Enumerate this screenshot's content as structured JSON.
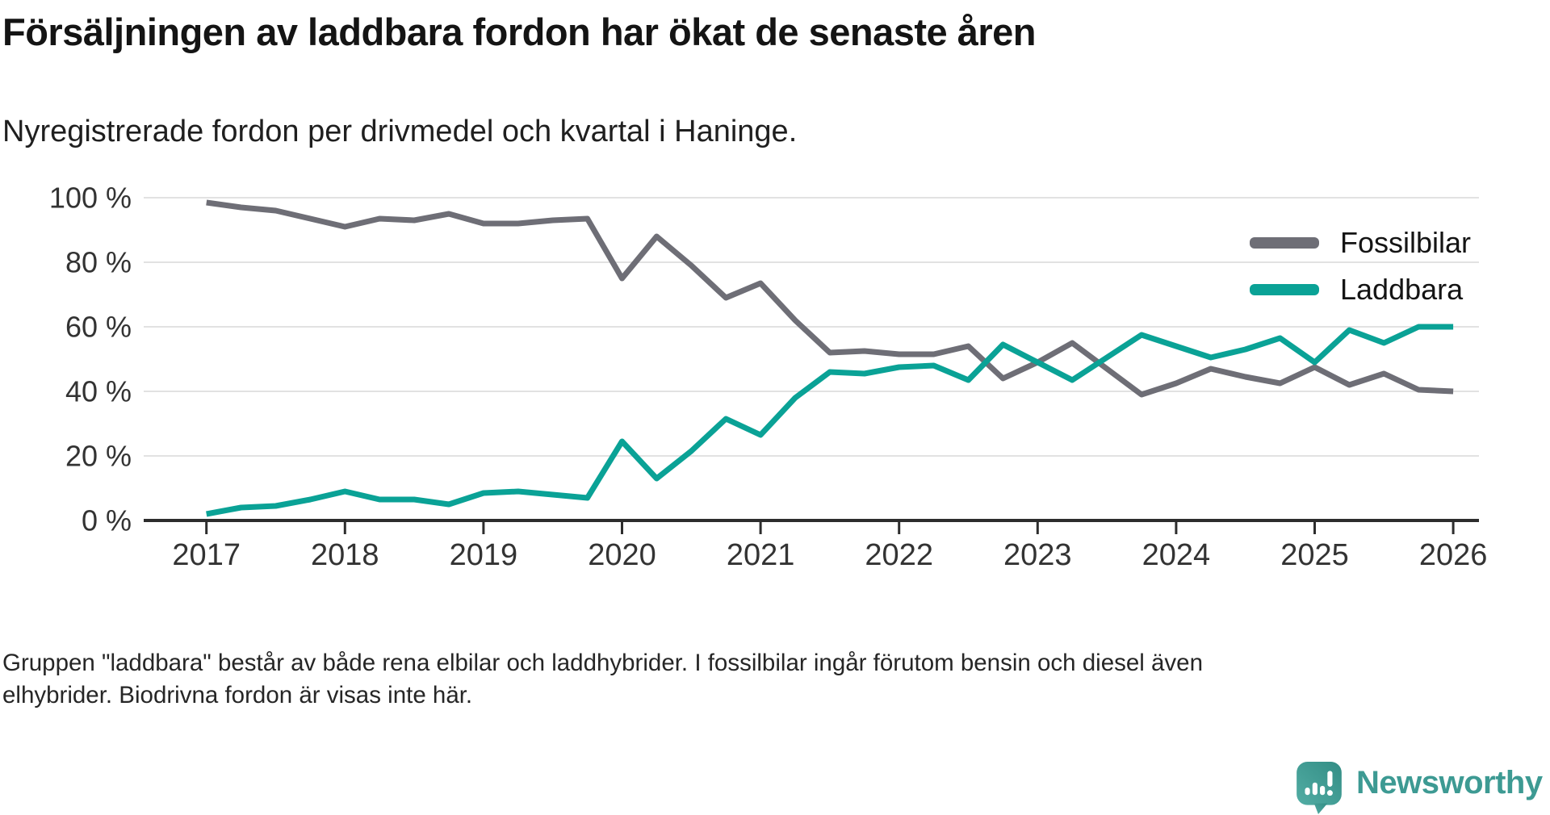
{
  "header": {
    "title": "Försäljningen av laddbara fordon har ökat de senaste åren",
    "subtitle": "Nyregistrerade fordon per drivmedel och kvartal i Haninge."
  },
  "legend": {
    "items": [
      {
        "label": "Fossilbilar",
        "color": "#6e6e76"
      },
      {
        "label": "Laddbara",
        "color": "#0aa296"
      }
    ]
  },
  "footer": {
    "lines": [
      "Gruppen \"laddbara\" består av både rena elbilar och laddhybrider. I fossilbilar ingår förutom bensin och diesel även",
      "elhybrider. Biodrivna fordon är visas inte här."
    ]
  },
  "branding": {
    "logo_text": "Newsworthy",
    "logo_color": "#3d9a93",
    "icon_name": "newsworthy-speech-bubble-chart-icon",
    "icon_gradient_start": "#52ada4",
    "icon_gradient_end": "#338d85"
  },
  "chart_data": {
    "type": "line",
    "title": "Nyregistrerade fordon per drivmedel och kvartal i Haninge",
    "x_unit": "quarter",
    "x_start_year": 2017,
    "x_step_years": 0.25,
    "x_tick_labels": [
      "2017",
      "2018",
      "2019",
      "2020",
      "2021",
      "2022",
      "2023",
      "2024",
      "2025",
      "2026"
    ],
    "y_ticks": [
      0,
      20,
      40,
      60,
      80,
      100
    ],
    "y_tick_labels": [
      "0 %",
      "20 %",
      "40 %",
      "60 %",
      "80 %",
      "100 %"
    ],
    "ylim": [
      0,
      100
    ],
    "grid": "horizontal",
    "legend_position": "top-right",
    "series": [
      {
        "name": "Fossilbilar",
        "color": "#6e6e76",
        "values": [
          98.5,
          97,
          96,
          93.5,
          91,
          93.5,
          93,
          95,
          92,
          92,
          93,
          93.5,
          75,
          88,
          79,
          69,
          73.5,
          62,
          52,
          52.5,
          51.5,
          51.5,
          54,
          44,
          49,
          55,
          47,
          39,
          42.5,
          47,
          44.5,
          42.5,
          47.5,
          42,
          45.5,
          40.5,
          40
        ]
      },
      {
        "name": "Laddbara",
        "color": "#0aa296",
        "values": [
          2,
          4,
          4.5,
          6.5,
          9,
          6.5,
          6.5,
          5,
          8.5,
          9,
          8,
          7,
          24.5,
          13,
          21.5,
          31.5,
          26.5,
          38,
          46,
          45.5,
          47.5,
          48,
          43.5,
          54.5,
          49,
          43.5,
          50.5,
          57.5,
          54,
          50.5,
          53,
          56.5,
          49,
          59,
          55,
          60,
          60
        ]
      }
    ]
  }
}
